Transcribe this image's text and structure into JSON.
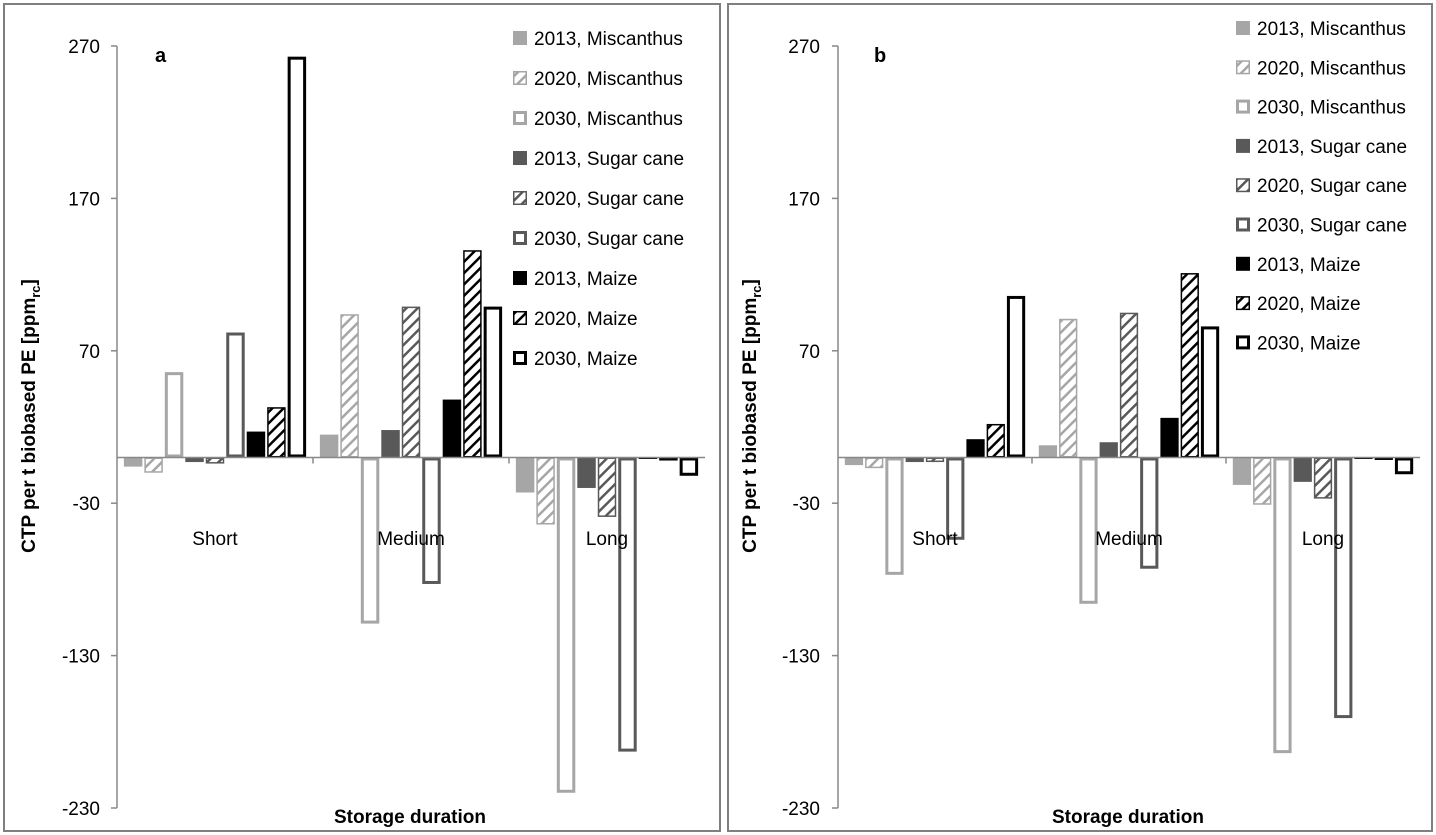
{
  "colors": {
    "miscanthus": "#a6a6a6",
    "sugar_cane": "#595959",
    "maize": "#000000",
    "frame": "#7f7f7f"
  },
  "series_styles": [
    {
      "name": "2013, Miscanthus",
      "color": "#a6a6a6",
      "pattern": "solid"
    },
    {
      "name": "2020, Miscanthus",
      "color": "#a6a6a6",
      "pattern": "hatch"
    },
    {
      "name": "2030, Miscanthus",
      "color": "#a6a6a6",
      "pattern": "outline"
    },
    {
      "name": "2013, Sugar cane",
      "color": "#595959",
      "pattern": "solid"
    },
    {
      "name": "2020, Sugar cane",
      "color": "#595959",
      "pattern": "hatch"
    },
    {
      "name": "2030, Sugar cane",
      "color": "#595959",
      "pattern": "outline"
    },
    {
      "name": "2013, Maize",
      "color": "#000000",
      "pattern": "solid"
    },
    {
      "name": "2020,  Maize",
      "color": "#000000",
      "pattern": "hatch"
    },
    {
      "name": "2030, Maize",
      "color": "#000000",
      "pattern": "outline"
    }
  ],
  "chart_data": [
    {
      "type": "bar",
      "panel_label": "a",
      "xlabel": "Storage duration",
      "ylabel_main": "CTP per t biobased PE [ppm",
      "ylabel_sub": "rc",
      "ylabel_end": "]",
      "ylim": [
        -230,
        270
      ],
      "yticks": [
        270,
        170,
        70,
        -30,
        -130,
        -230
      ],
      "grid": false,
      "legend_position": "top-right",
      "categories": [
        "Short",
        "Medium",
        "Long"
      ],
      "series": [
        {
          "name": "2013, Miscanthus",
          "values": [
            -6,
            15,
            -23
          ]
        },
        {
          "name": "2020, Miscanthus",
          "values": [
            -10,
            94,
            -44
          ]
        },
        {
          "name": "2030, Miscanthus",
          "values": [
            56,
            -109,
            -220
          ]
        },
        {
          "name": "2013, Sugar cane",
          "values": [
            -3,
            18,
            -20
          ]
        },
        {
          "name": "2020, Sugar cane",
          "values": [
            -4,
            99,
            -39
          ]
        },
        {
          "name": "2030, Sugar cane",
          "values": [
            82,
            -83,
            -193
          ]
        },
        {
          "name": "2013, Maize",
          "values": [
            17,
            38,
            -1
          ]
        },
        {
          "name": "2020,  Maize",
          "values": [
            33,
            136,
            -2
          ]
        },
        {
          "name": "2030, Maize",
          "values": [
            263,
            99,
            -12
          ]
        }
      ]
    },
    {
      "type": "bar",
      "panel_label": "b",
      "xlabel": "Storage duration",
      "ylabel_main": "CTP per t biobased PE [ppm",
      "ylabel_sub": "rc",
      "ylabel_end": "]",
      "ylim": [
        -230,
        270
      ],
      "yticks": [
        270,
        170,
        70,
        -30,
        -130,
        -230
      ],
      "grid": false,
      "legend_position": "top-right",
      "categories": [
        "Short",
        "Medium",
        "Long"
      ],
      "series": [
        {
          "name": "2013, Miscanthus",
          "values": [
            -5,
            8,
            -18
          ]
        },
        {
          "name": "2020, Miscanthus",
          "values": [
            -7,
            91,
            -31
          ]
        },
        {
          "name": "2030, Miscanthus",
          "values": [
            -77,
            -96,
            -194
          ]
        },
        {
          "name": "2013, Sugar cane",
          "values": [
            -3,
            10,
            -16
          ]
        },
        {
          "name": "2020, Sugar cane",
          "values": [
            -3,
            95,
            -27
          ]
        },
        {
          "name": "2030, Sugar cane",
          "values": [
            -54,
            -73,
            -171
          ]
        },
        {
          "name": "2013, Maize",
          "values": [
            12,
            26,
            -1
          ]
        },
        {
          "name": "2020,  Maize",
          "values": [
            22,
            121,
            -1
          ]
        },
        {
          "name": "2030, Maize",
          "values": [
            106,
            86,
            -11
          ]
        }
      ]
    }
  ]
}
